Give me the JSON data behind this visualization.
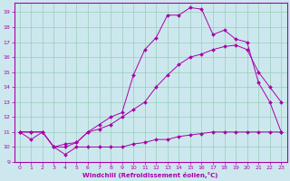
{
  "xlabel": "Windchill (Refroidissement éolien,°C)",
  "bg_color": "#cce8ee",
  "line_color": "#aa00aa",
  "grid_color": "#99ccbb",
  "xlim": [
    -0.5,
    23.5
  ],
  "ylim": [
    9,
    19.6
  ],
  "xticks": [
    0,
    1,
    2,
    3,
    4,
    5,
    6,
    7,
    8,
    9,
    10,
    11,
    12,
    13,
    14,
    15,
    16,
    17,
    18,
    19,
    20,
    21,
    22,
    23
  ],
  "yticks": [
    9,
    10,
    11,
    12,
    13,
    14,
    15,
    16,
    17,
    18,
    19
  ],
  "line1_x": [
    0,
    1,
    2,
    3,
    4,
    5,
    6,
    7,
    8,
    9,
    10,
    11,
    12,
    13,
    14,
    15,
    16,
    17,
    18,
    19,
    20,
    21,
    22,
    23
  ],
  "line1_y": [
    11,
    10.5,
    11,
    10,
    9.5,
    10,
    10,
    10,
    10,
    10,
    10.2,
    10.3,
    10.5,
    10.5,
    10.7,
    10.8,
    10.9,
    11,
    11,
    11,
    11,
    11,
    11,
    11
  ],
  "line2_x": [
    0,
    1,
    2,
    3,
    4,
    5,
    6,
    7,
    8,
    9,
    10,
    11,
    12,
    13,
    14,
    15,
    16,
    17,
    18,
    19,
    20,
    21,
    22,
    23
  ],
  "line2_y": [
    11,
    11,
    11,
    10,
    10.2,
    10.3,
    11,
    11.2,
    11.5,
    12,
    12.5,
    13,
    14,
    14.8,
    15.5,
    16,
    16.2,
    16.5,
    16.7,
    16.8,
    16.5,
    15,
    14,
    13
  ],
  "line3_x": [
    0,
    1,
    2,
    3,
    4,
    5,
    6,
    7,
    8,
    9,
    10,
    11,
    12,
    13,
    14,
    15,
    16,
    17,
    18,
    19,
    20,
    21,
    22,
    23
  ],
  "line3_y": [
    11,
    11,
    11,
    10,
    10,
    10.3,
    11,
    11.5,
    12,
    12.3,
    14.8,
    16.5,
    17.3,
    18.8,
    18.8,
    19.3,
    19.2,
    17.5,
    17.8,
    17.2,
    17,
    14.3,
    13,
    11
  ]
}
